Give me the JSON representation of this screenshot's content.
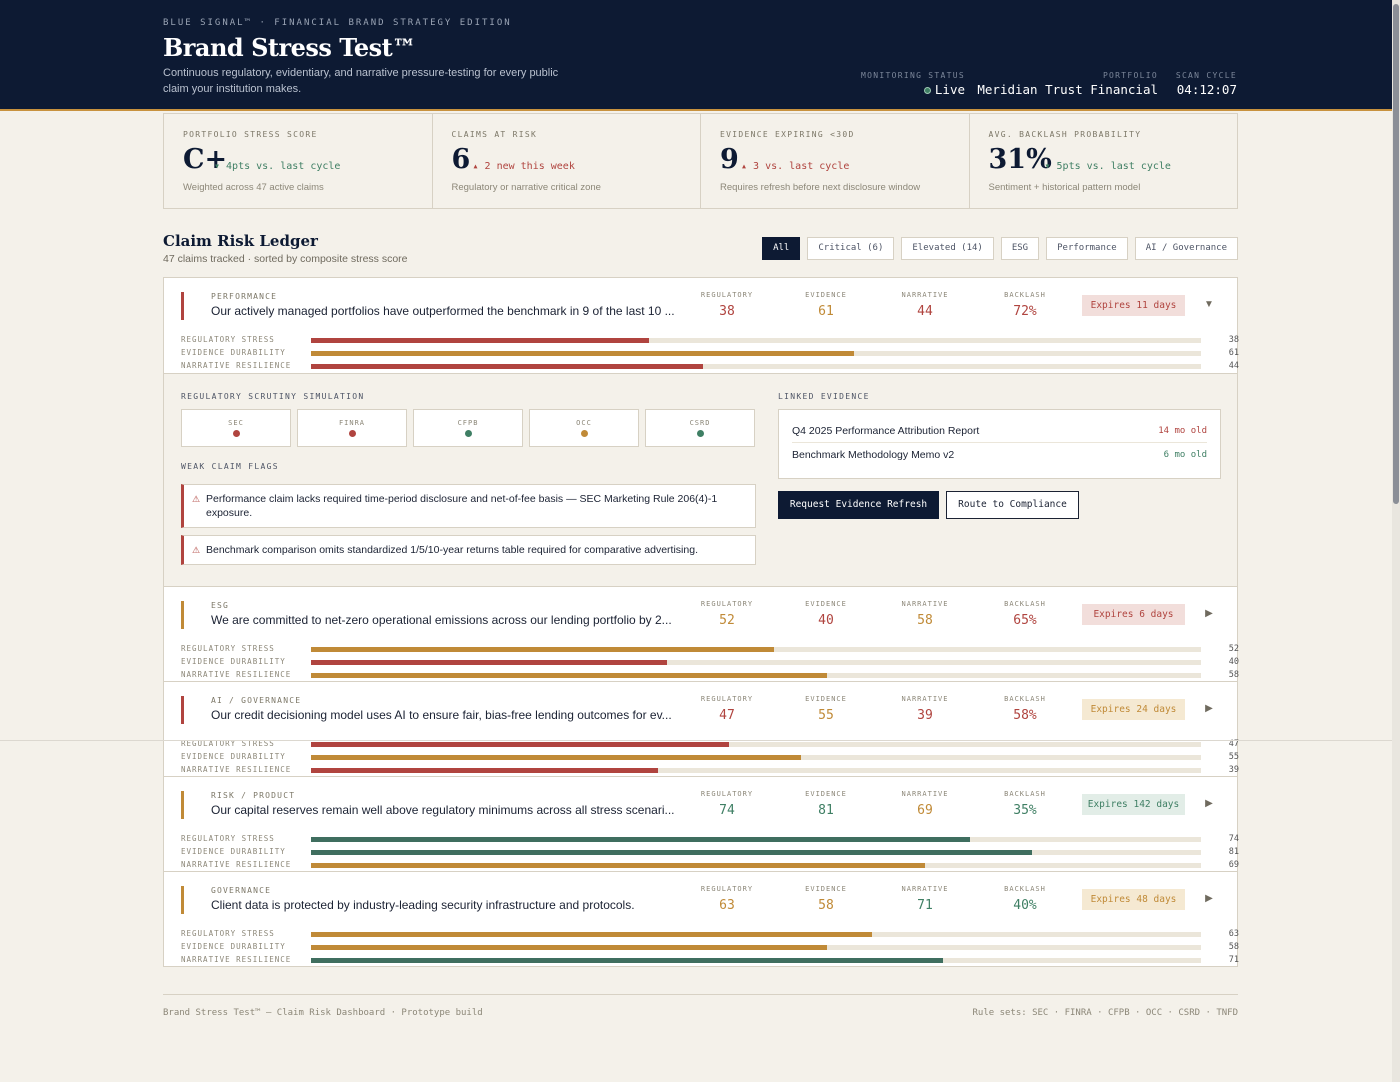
{
  "header": {
    "eyebrow": "BLUE SIGNAL™ · FINANCIAL BRAND STRATEGY EDITION",
    "title": "Brand Stress Test™",
    "subtitle": "Continuous regulatory, evidentiary, and narrative pressure-testing for every public claim your institution makes.",
    "monitoring_label": "MONITORING STATUS",
    "monitoring_value": "Live",
    "portfolio_label": "PORTFOLIO",
    "portfolio_value": "Meridian Trust Financial",
    "scan_label": "SCAN CYCLE",
    "scan_value": "04:12:07"
  },
  "kpis": [
    {
      "label": "PORTFOLIO STRESS SCORE",
      "value": "C+",
      "delta": "▾ 4pts vs. last cycle",
      "tone": "good",
      "note": "Weighted across 47 active claims"
    },
    {
      "label": "CLAIMS AT RISK",
      "value": "6",
      "delta": "▴ 2 new this week",
      "tone": "bad",
      "note": "Regulatory or narrative critical zone"
    },
    {
      "label": "EVIDENCE EXPIRING <30D",
      "value": "9",
      "delta": "▴ 3 vs. last cycle",
      "tone": "bad",
      "note": "Requires refresh before next disclosure window"
    },
    {
      "label": "AVG. BACKLASH PROBABILITY",
      "value": "31%",
      "delta": "▾ 5pts vs. last cycle",
      "tone": "good",
      "note": "Sentiment + historical pattern model"
    }
  ],
  "ledger": {
    "title": "Claim Risk Ledger",
    "subtitle": "47 claims tracked · sorted by composite stress score",
    "filters": [
      "All",
      "Critical (6)",
      "Elevated (14)",
      "ESG",
      "Performance",
      "AI / Governance"
    ],
    "metric_labels": {
      "regulatory": "REGULATORY",
      "evidence": "EVIDENCE",
      "narrative": "NARRATIVE",
      "backlash": "BACKLASH"
    },
    "bar_labels": {
      "regulatory": "REGULATORY STRESS",
      "evidence": "EVIDENCE DURABILITY",
      "narrative": "NARRATIVE RESILIENCE"
    },
    "claims": [
      {
        "category": "PERFORMANCE",
        "text": "Our actively managed portfolios have outperformed the benchmark in 9 of the last 10 ...",
        "regulatory": 38,
        "evidence": 61,
        "narrative": 44,
        "backlash": "72%",
        "expiry": "Expires 11 days",
        "expiry_tone": "bad",
        "accent": "bad",
        "tones": [
          "bad",
          "warn",
          "bad",
          "bad"
        ],
        "expanded": true,
        "toggle": "▼"
      },
      {
        "category": "ESG",
        "text": "We are committed to net-zero operational emissions across our lending portfolio by 2...",
        "regulatory": 52,
        "evidence": 40,
        "narrative": 58,
        "backlash": "65%",
        "expiry": "Expires 6 days",
        "expiry_tone": "bad",
        "accent": "warn",
        "tones": [
          "warn",
          "bad",
          "warn",
          "bad"
        ],
        "expanded": false,
        "toggle": "▶"
      },
      {
        "category": "AI / GOVERNANCE",
        "text": "Our credit decisioning model uses AI to ensure fair, bias-free lending outcomes for ev...",
        "regulatory": 47,
        "evidence": 55,
        "narrative": 39,
        "backlash": "58%",
        "expiry": "Expires 24 days",
        "expiry_tone": "warn",
        "accent": "bad",
        "tones": [
          "bad",
          "warn",
          "bad",
          "bad"
        ],
        "expanded": false,
        "toggle": "▶"
      },
      {
        "category": "RISK / PRODUCT",
        "text": "Our capital reserves remain well above regulatory minimums across all stress scenari...",
        "regulatory": 74,
        "evidence": 81,
        "narrative": 69,
        "backlash": "35%",
        "expiry": "Expires 142 days",
        "expiry_tone": "good",
        "accent": "warn",
        "tones": [
          "good",
          "good",
          "warn",
          "good"
        ],
        "expanded": false,
        "toggle": "▶"
      },
      {
        "category": "GOVERNANCE",
        "text": "Client data is protected by industry-leading security infrastructure and protocols.",
        "regulatory": 63,
        "evidence": 58,
        "narrative": 71,
        "backlash": "40%",
        "expiry": "Expires 48 days",
        "expiry_tone": "warn",
        "accent": "warn",
        "tones": [
          "warn",
          "warn",
          "good",
          "good"
        ],
        "expanded": false,
        "toggle": "▶"
      }
    ]
  },
  "detail": {
    "sim_label": "REGULATORY SCRUTINY SIMULATION",
    "regulators": [
      {
        "name": "SEC",
        "tone": "bad"
      },
      {
        "name": "FINRA",
        "tone": "bad"
      },
      {
        "name": "CFPB",
        "tone": "good"
      },
      {
        "name": "OCC",
        "tone": "warn"
      },
      {
        "name": "CSRD",
        "tone": "good"
      }
    ],
    "flags_label": "WEAK CLAIM FLAGS",
    "flags": [
      "Performance claim lacks required time-period disclosure and net-of-fee basis — SEC Marketing Rule 206(4)-1 exposure.",
      "Benchmark comparison omits standardized 1/5/10-year returns table required for comparative advertising."
    ],
    "evidence_label": "LINKED EVIDENCE",
    "evidence": [
      {
        "name": "Q4 2025 Performance Attribution Report",
        "age": "14 mo old",
        "tone": "bad"
      },
      {
        "name": "Benchmark Methodology Memo v2",
        "age": "6 mo old",
        "tone": "good"
      }
    ],
    "primary_button": "Request Evidence Refresh",
    "secondary_button": "Route to Compliance",
    "flag_icon": "warning-icon"
  },
  "footer": {
    "left": "Brand Stress Test™ — Claim Risk Dashboard · Prototype build",
    "right": "Rule sets: SEC · FINRA · CFPB · OCC · CSRD · TNFD"
  },
  "colors": {
    "navy": "#0d1a33",
    "gold": "#c8923e",
    "red": "#b0443f",
    "amber": "#c08a37",
    "green": "#3f7f64"
  }
}
